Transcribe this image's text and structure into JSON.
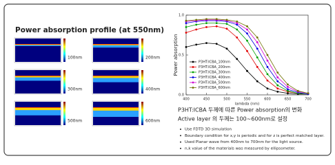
{
  "title": "Power absorption profile (at 550nm)",
  "heatmaps": [
    {
      "label": "100nm"
    },
    {
      "label": "200nm"
    },
    {
      "label": "300nm"
    },
    {
      "label": "400nm"
    },
    {
      "label": "500nm"
    },
    {
      "label": "600nm"
    }
  ],
  "chart_data": {
    "type": "line",
    "ylabel": "Power absorption",
    "xlabel": "lambda (nm)",
    "x": [
      400,
      425,
      450,
      475,
      500,
      525,
      550,
      575,
      600,
      625,
      650,
      675,
      700
    ],
    "xlim": [
      400,
      700
    ],
    "xticks": [
      400,
      450,
      500,
      550,
      600,
      650,
      700
    ],
    "ylim": [
      0,
      1
    ],
    "yticks": [
      {
        "value": 0,
        "label": "0.0"
      },
      0.5,
      {
        "value": 1,
        "label": "1.0"
      }
    ],
    "legend": "lower-left",
    "series": [
      {
        "name": "P3HT:ICBA_100nm",
        "color": "#000000",
        "values": [
          0.6,
          0.63,
          0.65,
          0.64,
          0.58,
          0.45,
          0.3,
          0.17,
          0.08,
          0.04,
          0.02,
          0.01,
          0.01
        ]
      },
      {
        "name": "P3HT:ICBA_200nm",
        "color": "#e00000",
        "values": [
          0.78,
          0.82,
          0.85,
          0.86,
          0.83,
          0.72,
          0.55,
          0.35,
          0.18,
          0.08,
          0.04,
          0.02,
          0.01
        ]
      },
      {
        "name": "P3HT:ICBA_300nm",
        "color": "#00a000",
        "values": [
          0.85,
          0.88,
          0.9,
          0.9,
          0.89,
          0.82,
          0.68,
          0.47,
          0.26,
          0.12,
          0.05,
          0.02,
          0.01
        ]
      },
      {
        "name": "P3HT:ICBA_400nm",
        "color": "#0000e0",
        "values": [
          0.9,
          0.92,
          0.93,
          0.93,
          0.92,
          0.88,
          0.77,
          0.58,
          0.35,
          0.17,
          0.07,
          0.03,
          0.01
        ]
      },
      {
        "name": "P3HT:ICBA_500nm",
        "color": "#d000d0",
        "values": [
          0.92,
          0.93,
          0.94,
          0.94,
          0.93,
          0.9,
          0.82,
          0.66,
          0.43,
          0.22,
          0.1,
          0.04,
          0.02
        ]
      },
      {
        "name": "P3HT:ICBA_600nm",
        "color": "#707000",
        "values": [
          0.93,
          0.94,
          0.95,
          0.95,
          0.94,
          0.92,
          0.86,
          0.72,
          0.5,
          0.28,
          0.13,
          0.05,
          0.02
        ]
      }
    ]
  },
  "notes": {
    "line1": "P3HT:ICBA 두께에 따른 Power absorption의 변화",
    "line2": "Active layer 의 두께는 100~600nm로 설정"
  },
  "bullets": [
    "Use FDTD 3D simulation",
    "Boundary condition for x,y is periodic and for z is perfect matched layer.",
    "Used Planar wave from 400nm to 700nm for the light source.",
    "n,k value of the materials was measured by ellipsometer."
  ]
}
